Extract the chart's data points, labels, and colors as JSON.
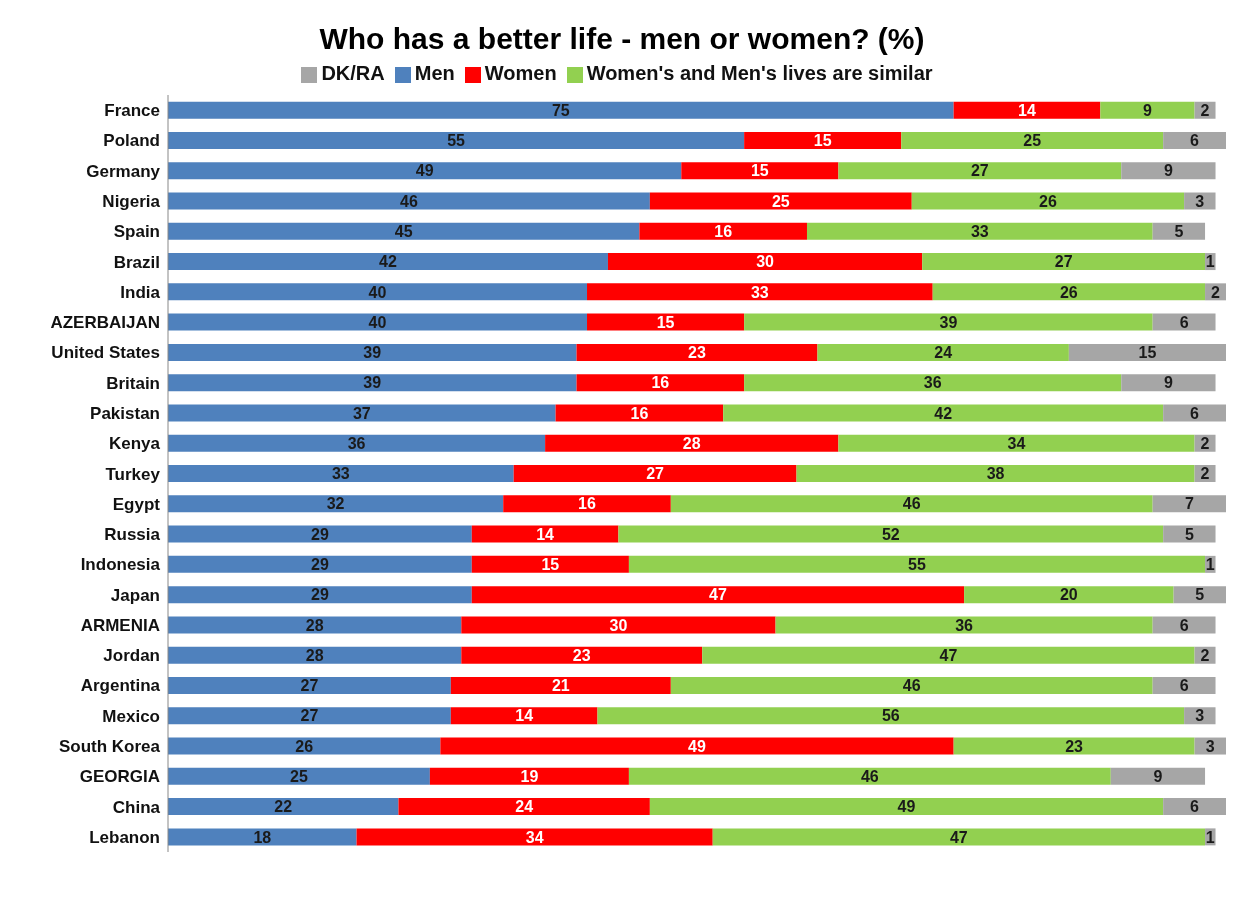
{
  "chart_data": {
    "type": "bar",
    "title": "Who has a better life - men or women? (%)",
    "orientation": "horizontal",
    "stacked": true,
    "data_labels": true,
    "legend": "top",
    "grid": false,
    "tick_labels": "y",
    "xlim": [
      0,
      101
    ],
    "categories": [
      "France",
      "Poland",
      "Germany",
      "Nigeria",
      "Spain",
      "Brazil",
      "India",
      "AZERBAIJAN",
      "United States",
      "Britain",
      "Pakistan",
      "Kenya",
      "Turkey",
      "Egypt",
      "Russia",
      "Indonesia",
      "Japan",
      "ARMENIA",
      "Jordan",
      "Argentina",
      "Mexico",
      "South Korea",
      "GEORGIA",
      "China",
      "Lebanon"
    ],
    "series": [
      {
        "name": "Men",
        "color": "#4f81bd",
        "values": [
          75,
          55,
          49,
          46,
          45,
          42,
          40,
          40,
          39,
          39,
          37,
          36,
          33,
          32,
          29,
          29,
          29,
          28,
          28,
          27,
          27,
          26,
          25,
          22,
          18
        ]
      },
      {
        "name": "Women",
        "color": "#ff0000",
        "values": [
          14,
          15,
          15,
          25,
          16,
          30,
          33,
          15,
          23,
          16,
          16,
          28,
          27,
          16,
          14,
          15,
          47,
          30,
          23,
          21,
          14,
          49,
          19,
          24,
          34
        ]
      },
      {
        "name": "Women's and Men's lives are similar",
        "color": "#92d050",
        "values": [
          9,
          25,
          27,
          26,
          33,
          27,
          26,
          39,
          24,
          36,
          42,
          34,
          38,
          46,
          52,
          55,
          20,
          36,
          47,
          46,
          56,
          23,
          46,
          49,
          47
        ]
      },
      {
        "name": "DK/RA",
        "color": "#a6a6a6",
        "values": [
          2,
          6,
          9,
          3,
          5,
          1,
          2,
          6,
          15,
          9,
          6,
          2,
          2,
          7,
          5,
          1,
          5,
          6,
          2,
          6,
          3,
          3,
          9,
          6,
          1
        ]
      }
    ]
  }
}
